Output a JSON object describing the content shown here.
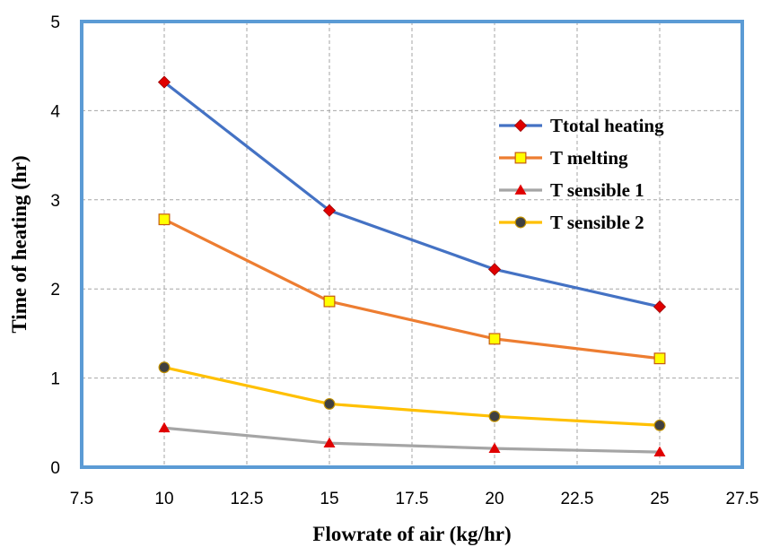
{
  "chart_data": {
    "type": "line",
    "title": "",
    "xlabel": "Flowrate of air (kg/hr)",
    "ylabel": "Time of heating (hr)",
    "xlim": [
      7.5,
      27.5
    ],
    "ylim": [
      0,
      5
    ],
    "xticks": [
      "7.5",
      "10",
      "12.5",
      "15",
      "17.5",
      "20",
      "22.5",
      "25",
      "27.5"
    ],
    "yticks": [
      "0",
      "1",
      "2",
      "3",
      "4",
      "5"
    ],
    "grid": true,
    "legend_position": "right",
    "x": [
      10,
      15,
      20,
      25
    ],
    "series": [
      {
        "name": "Ttotal heating",
        "values": [
          4.32,
          2.88,
          2.22,
          1.8
        ],
        "color": "#4472C4",
        "marker": "diamond",
        "marker_color": "#E00000"
      },
      {
        "name": "T  melting",
        "values": [
          2.78,
          1.86,
          1.44,
          1.22
        ],
        "color": "#ED7D31",
        "marker": "square",
        "marker_color": "#FFFF00"
      },
      {
        "name": "T  sensible 1",
        "values": [
          0.43,
          0.27,
          0.21,
          0.17
        ],
        "color": "#A5A5A5",
        "marker": "triangle",
        "marker_color": "#E00000"
      },
      {
        "name": "T  sensible 2",
        "values": [
          1.12,
          0.71,
          0.57,
          0.47
        ],
        "color": "#FFC000",
        "marker": "circle",
        "marker_color": "#404040"
      }
    ],
    "plot_border_color": "#5B9BD5"
  }
}
